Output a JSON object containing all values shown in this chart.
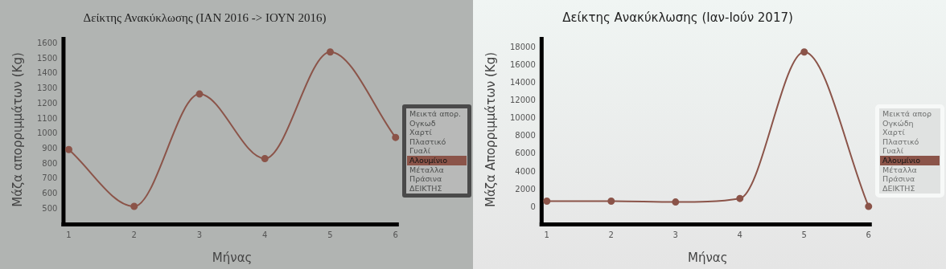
{
  "chart_data": [
    {
      "type": "line",
      "title": "Δείκτης Ανακύκλωσης (ΙΑΝ 2016 -> ΙΟΥΝ 2016)",
      "xlabel": "Μήνας",
      "ylabel": "Μάζα απορριμμάτων (Kg)",
      "x": [
        1,
        2,
        3,
        4,
        5,
        6
      ],
      "series": [
        {
          "name": "Μεικτά απορ.",
          "color": "#4e504f",
          "values": [
            null,
            null,
            null,
            null,
            null,
            null
          ]
        },
        {
          "name": "Ογκωδ",
          "color": "#4e504f",
          "values": [
            null,
            null,
            null,
            null,
            null,
            null
          ]
        },
        {
          "name": "Χαρτί",
          "color": "#4e504f",
          "values": [
            null,
            null,
            null,
            null,
            null,
            null
          ]
        },
        {
          "name": "Πλαστικό",
          "color": "#4e504f",
          "values": [
            null,
            null,
            null,
            null,
            null,
            null
          ]
        },
        {
          "name": "Γυαλί",
          "color": "#4e504f",
          "values": [
            null,
            null,
            null,
            null,
            null,
            null
          ]
        },
        {
          "name": "Αλουμίνιο",
          "color": "#8b5449",
          "values": [
            895,
            517,
            1265,
            835,
            1545,
            976
          ]
        },
        {
          "name": "Μέταλλα",
          "color": "#4e504f",
          "values": [
            null,
            null,
            null,
            null,
            null,
            null
          ]
        },
        {
          "name": "Πράσινα",
          "color": "#4e504f",
          "values": [
            null,
            null,
            null,
            null,
            null,
            null
          ]
        },
        {
          "name": "ΔΕΙΚΤΗΣ",
          "color": "#4e504f",
          "values": [
            null,
            null,
            null,
            null,
            null,
            null
          ]
        }
      ],
      "xlim": [
        0.95,
        6.05
      ],
      "xticks": [
        1,
        2,
        3,
        4,
        5,
        6
      ],
      "ylim": [
        410,
        1645
      ],
      "yticks": [
        500,
        600,
        700,
        800,
        900,
        1000,
        1100,
        1200,
        1300,
        1400,
        1500,
        1600
      ],
      "grid": false,
      "legend": "right",
      "marker": "circle"
    },
    {
      "type": "line",
      "title": "Δείκτης Ανακύκλωσης (Ιαν-Ιούν 2017)",
      "xlabel": "Μήνας",
      "ylabel": "Μάζα Απορριμμάτων (Kg)",
      "x": [
        1,
        2,
        3,
        4,
        5,
        6
      ],
      "series": [
        {
          "name": "Μεικτά απορ",
          "color": "#6f7170",
          "values": [
            null,
            null,
            null,
            null,
            null,
            null
          ]
        },
        {
          "name": "Ογκώδη",
          "color": "#6f7170",
          "values": [
            null,
            null,
            null,
            null,
            null,
            null
          ]
        },
        {
          "name": "Χαρτί",
          "color": "#6f7170",
          "values": [
            null,
            null,
            null,
            null,
            null,
            null
          ]
        },
        {
          "name": "Πλαστικό",
          "color": "#6f7170",
          "values": [
            null,
            null,
            null,
            null,
            null,
            null
          ]
        },
        {
          "name": "Γυαλί",
          "color": "#6f7170",
          "values": [
            null,
            null,
            null,
            null,
            null,
            null
          ]
        },
        {
          "name": "Αλουμίνιο",
          "color": "#8b5449",
          "values": [
            700,
            700,
            600,
            1000,
            17500,
            100
          ]
        },
        {
          "name": "Μέταλλα",
          "color": "#6f7170",
          "values": [
            null,
            null,
            null,
            null,
            null,
            null
          ]
        },
        {
          "name": "Πράσινα",
          "color": "#6f7170",
          "values": [
            null,
            null,
            null,
            null,
            null,
            null
          ]
        },
        {
          "name": "ΔΕΙΚΤΗΣ",
          "color": "#6f7170",
          "values": [
            null,
            null,
            null,
            null,
            null,
            null
          ]
        }
      ],
      "xlim": [
        0.95,
        6.05
      ],
      "xticks": [
        1,
        2,
        3,
        4,
        5,
        6
      ],
      "ylim": [
        -1700,
        19200
      ],
      "yticks": [
        0,
        2000,
        4000,
        6000,
        8000,
        10000,
        12000,
        14000,
        16000,
        18000
      ],
      "grid": false,
      "legend": "right",
      "marker": "circle"
    }
  ]
}
